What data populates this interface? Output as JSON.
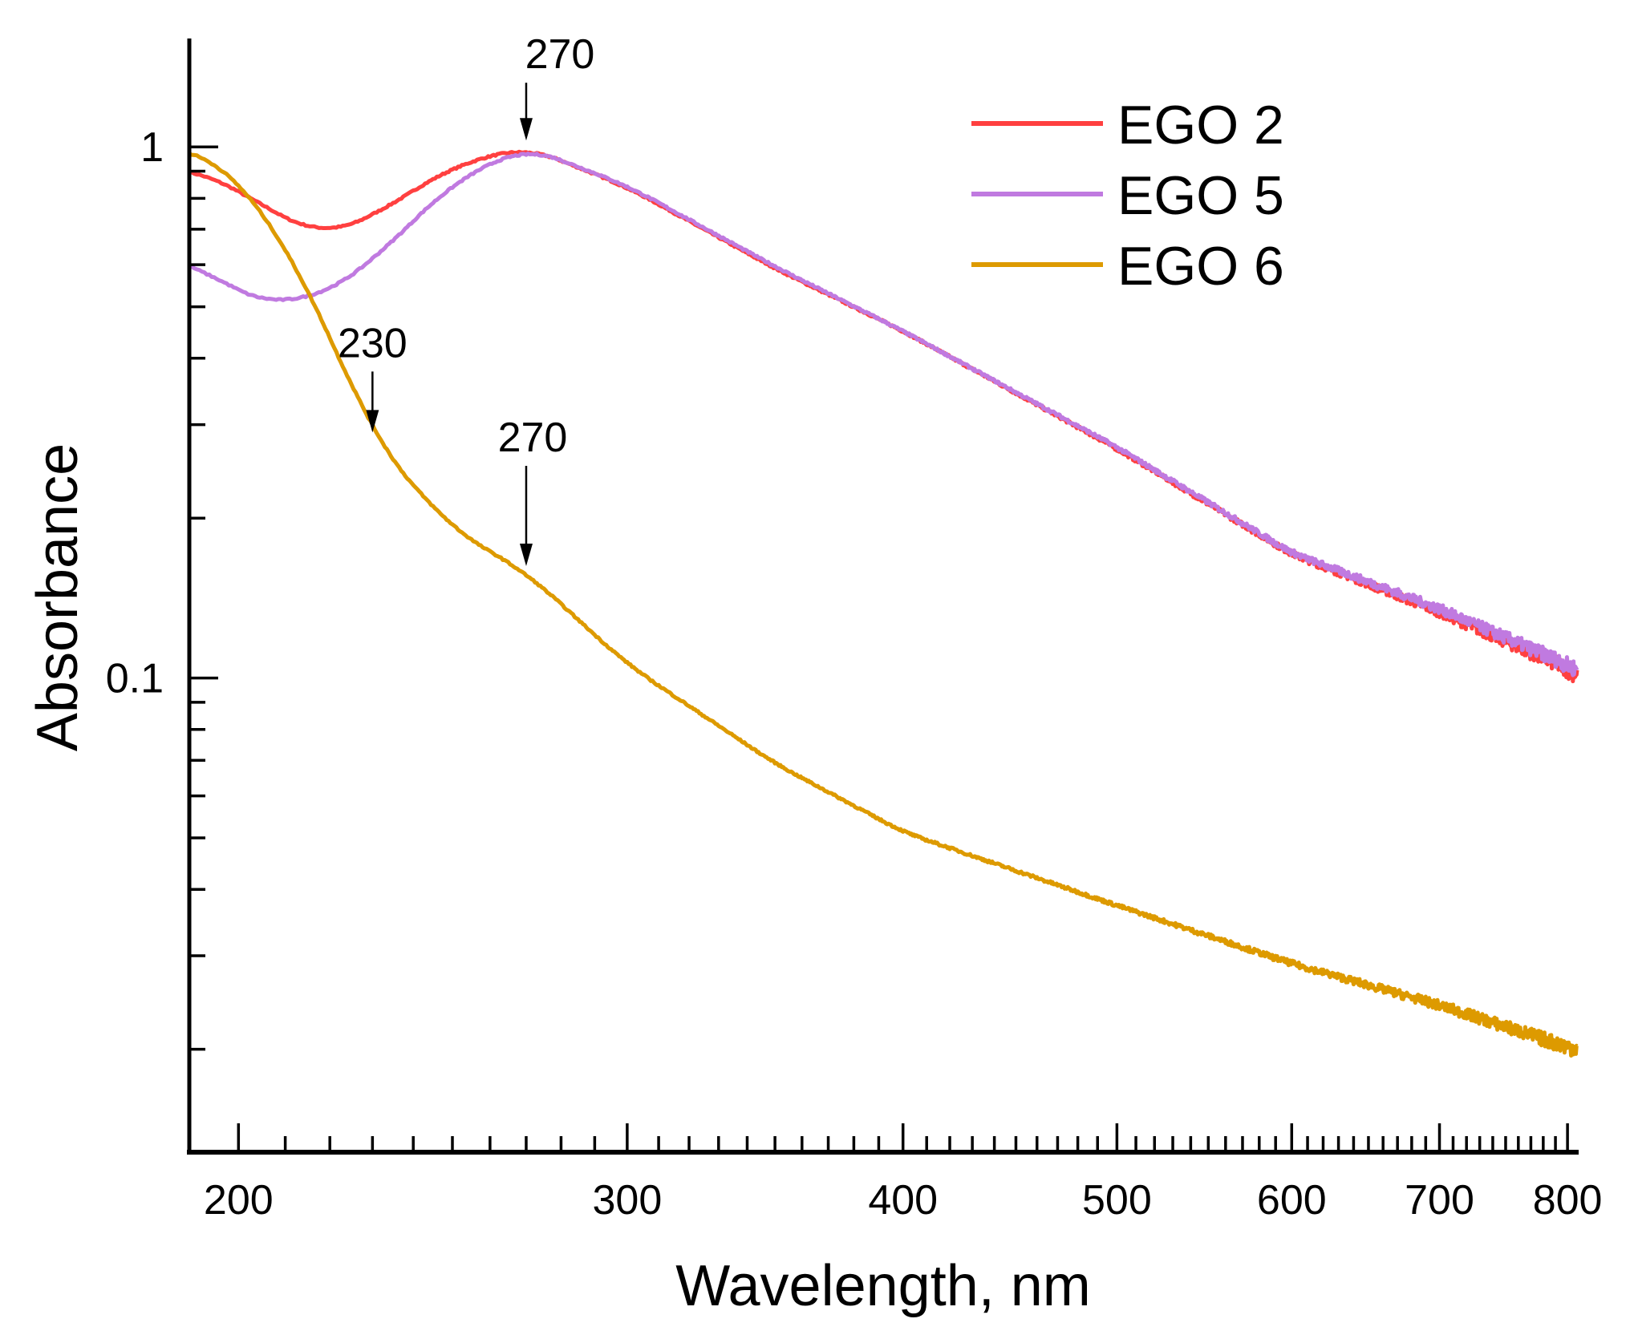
{
  "chart_data": {
    "type": "line",
    "title": "",
    "xlabel": "Wavelength, nm",
    "ylabel": "Absorbance",
    "xscale": "log",
    "yscale": "log",
    "xlim": [
      190,
      808
    ],
    "ylim": [
      0.0128,
      1.6
    ],
    "x_ticks": [
      200,
      300,
      400,
      500,
      600,
      700,
      800
    ],
    "x_tick_labels": [
      "200",
      "300",
      "400",
      "500",
      "600",
      "700",
      "800"
    ],
    "y_ticks": [
      0.1,
      1
    ],
    "y_tick_labels": [
      "0.1",
      "1"
    ],
    "grid": false,
    "legend_position": "top-right",
    "x": [
      190,
      195,
      200,
      210,
      218,
      230,
      250,
      270,
      300,
      350,
      400,
      500,
      600,
      700,
      800,
      808
    ],
    "series": [
      {
        "name": "EGO 2",
        "color": "#ff4040",
        "values": [
          0.92,
          0.87,
          0.83,
          0.73,
          0.675,
          0.74,
          0.92,
          1.0,
          0.84,
          0.59,
          0.45,
          0.27,
          0.171,
          0.133,
          0.104,
          0.1
        ]
      },
      {
        "name": "EGO 5",
        "color": "#c07ae0",
        "values": [
          0.63,
          0.556,
          0.52,
          0.51,
          0.52,
          0.61,
          0.857,
          1.0,
          0.845,
          0.595,
          0.45,
          0.272,
          0.172,
          0.135,
          0.106,
          0.103
        ]
      },
      {
        "name": "EGO 6",
        "color": "#dd9a00",
        "values": [
          1.0,
          0.95,
          0.877,
          0.65,
          0.486,
          0.282,
          0.19,
          0.158,
          0.106,
          0.069,
          0.0513,
          0.0373,
          0.029,
          0.0242,
          0.0202,
          0.02
        ]
      }
    ],
    "annotations": [
      {
        "label": "270",
        "wavelength": 270,
        "series": "EGO 5"
      },
      {
        "label": "230",
        "wavelength": 230,
        "series": "EGO 6"
      },
      {
        "label": "270",
        "wavelength": 270,
        "series": "EGO 6"
      }
    ]
  }
}
